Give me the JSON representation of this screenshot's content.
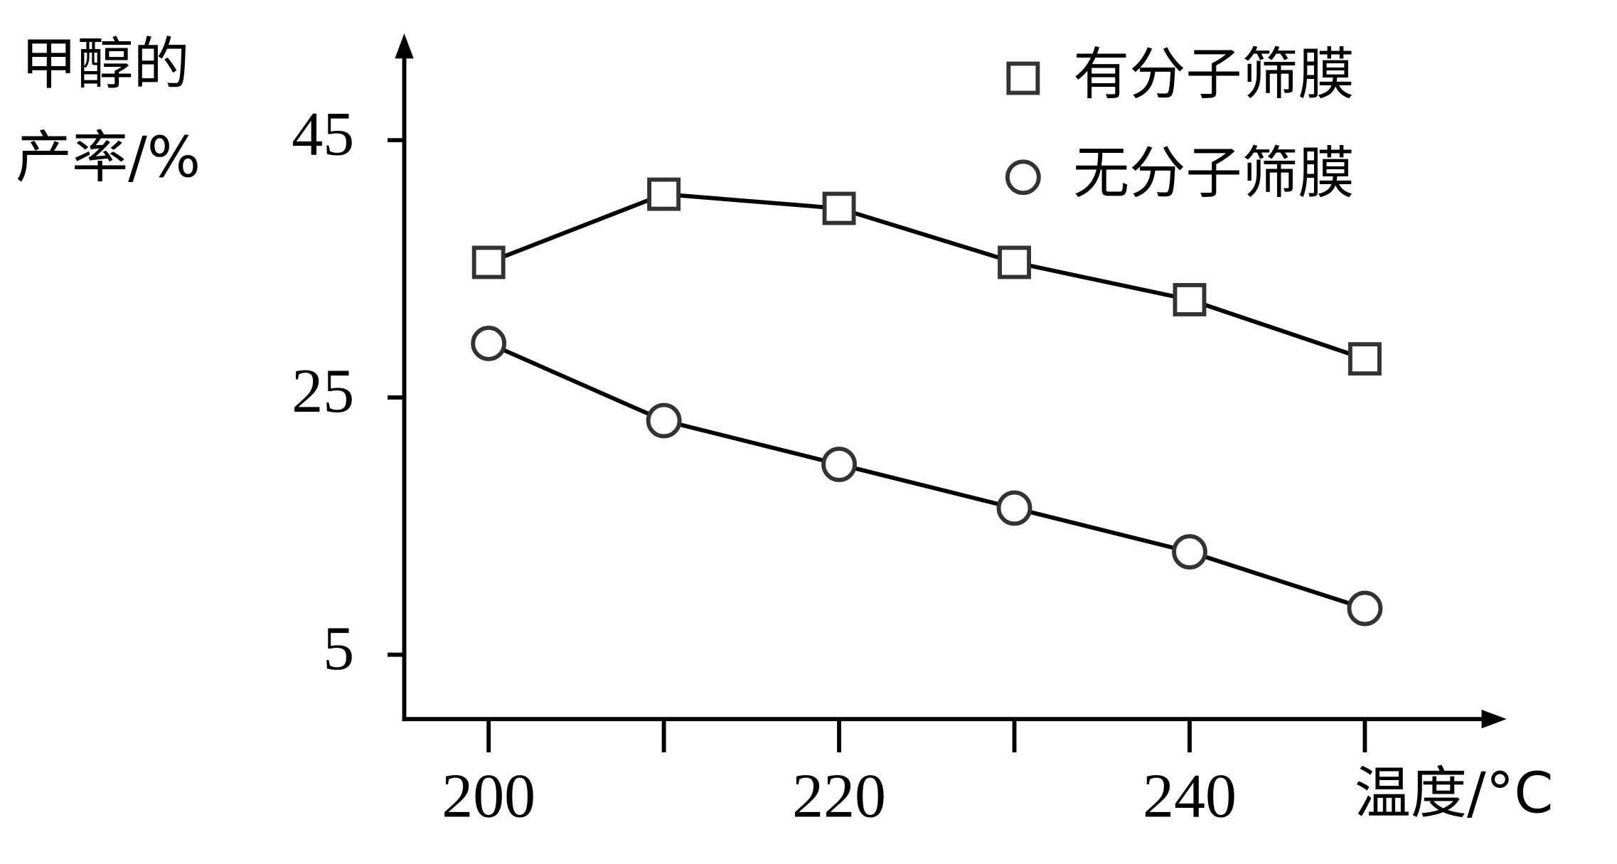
{
  "chart_data": {
    "type": "line",
    "ylabel": [
      "甲醇的",
      "产率/%"
    ],
    "xlabel": "温度/°C",
    "categories": [
      200,
      null,
      220,
      null,
      240,
      null
    ],
    "series": [
      {
        "name": "有分子筛膜",
        "marker": "square",
        "color": "#000000",
        "values": [
          35.5,
          40.8,
          39.7,
          35.5,
          32.6,
          28.0
        ]
      },
      {
        "name": "无分子筛膜",
        "marker": "circle",
        "color": "#000000",
        "values": [
          29.2,
          23.2,
          19.8,
          16.4,
          13.0,
          8.6
        ]
      }
    ],
    "ylim": [
      0,
      52
    ],
    "yticks": [
      5,
      25,
      45
    ],
    "grid": false,
    "legend": "top-right"
  }
}
